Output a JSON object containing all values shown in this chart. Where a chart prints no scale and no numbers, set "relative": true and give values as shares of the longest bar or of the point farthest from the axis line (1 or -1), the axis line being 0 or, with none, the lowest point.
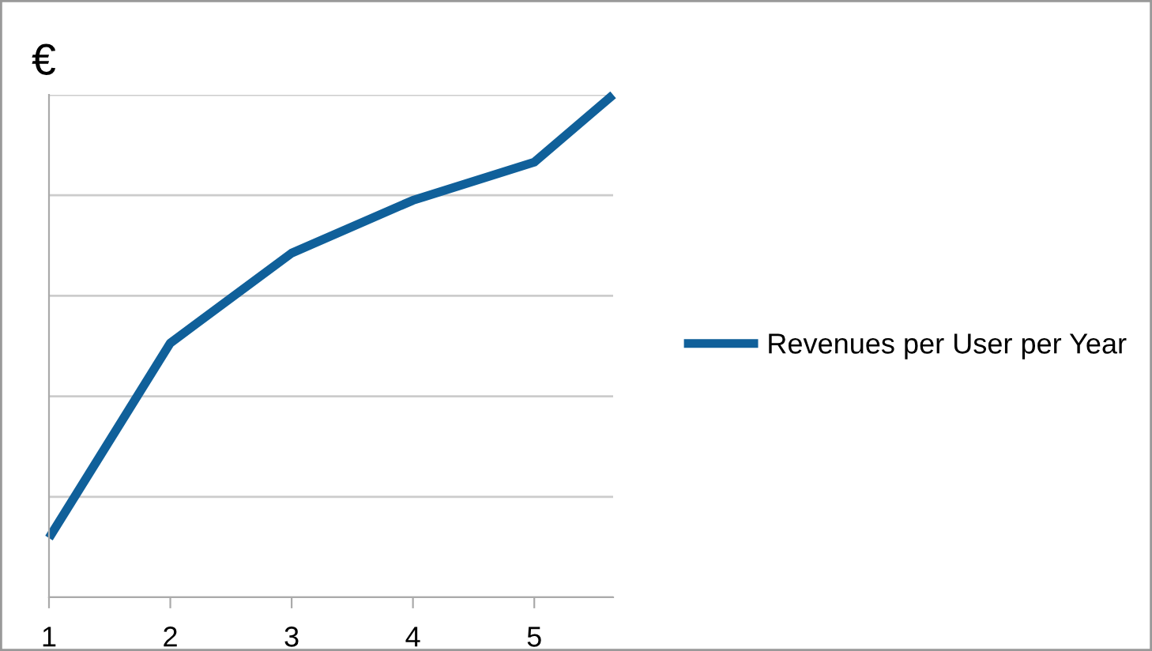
{
  "chart_data": {
    "type": "line",
    "ylabel": "€",
    "relative": true,
    "x": [
      1,
      2,
      3,
      4,
      5,
      5.65
    ],
    "xlim": [
      1,
      5.65
    ],
    "xticks": [
      1,
      2,
      3,
      4,
      5
    ],
    "series": [
      {
        "name": "Revenues per User per Year",
        "color": "#10609a",
        "values": [
          0.118,
          0.506,
          0.685,
          0.79,
          0.866,
          1
        ]
      }
    ],
    "grid": "y",
    "legend": "right",
    "marker": "none",
    "line_style": "solid"
  }
}
